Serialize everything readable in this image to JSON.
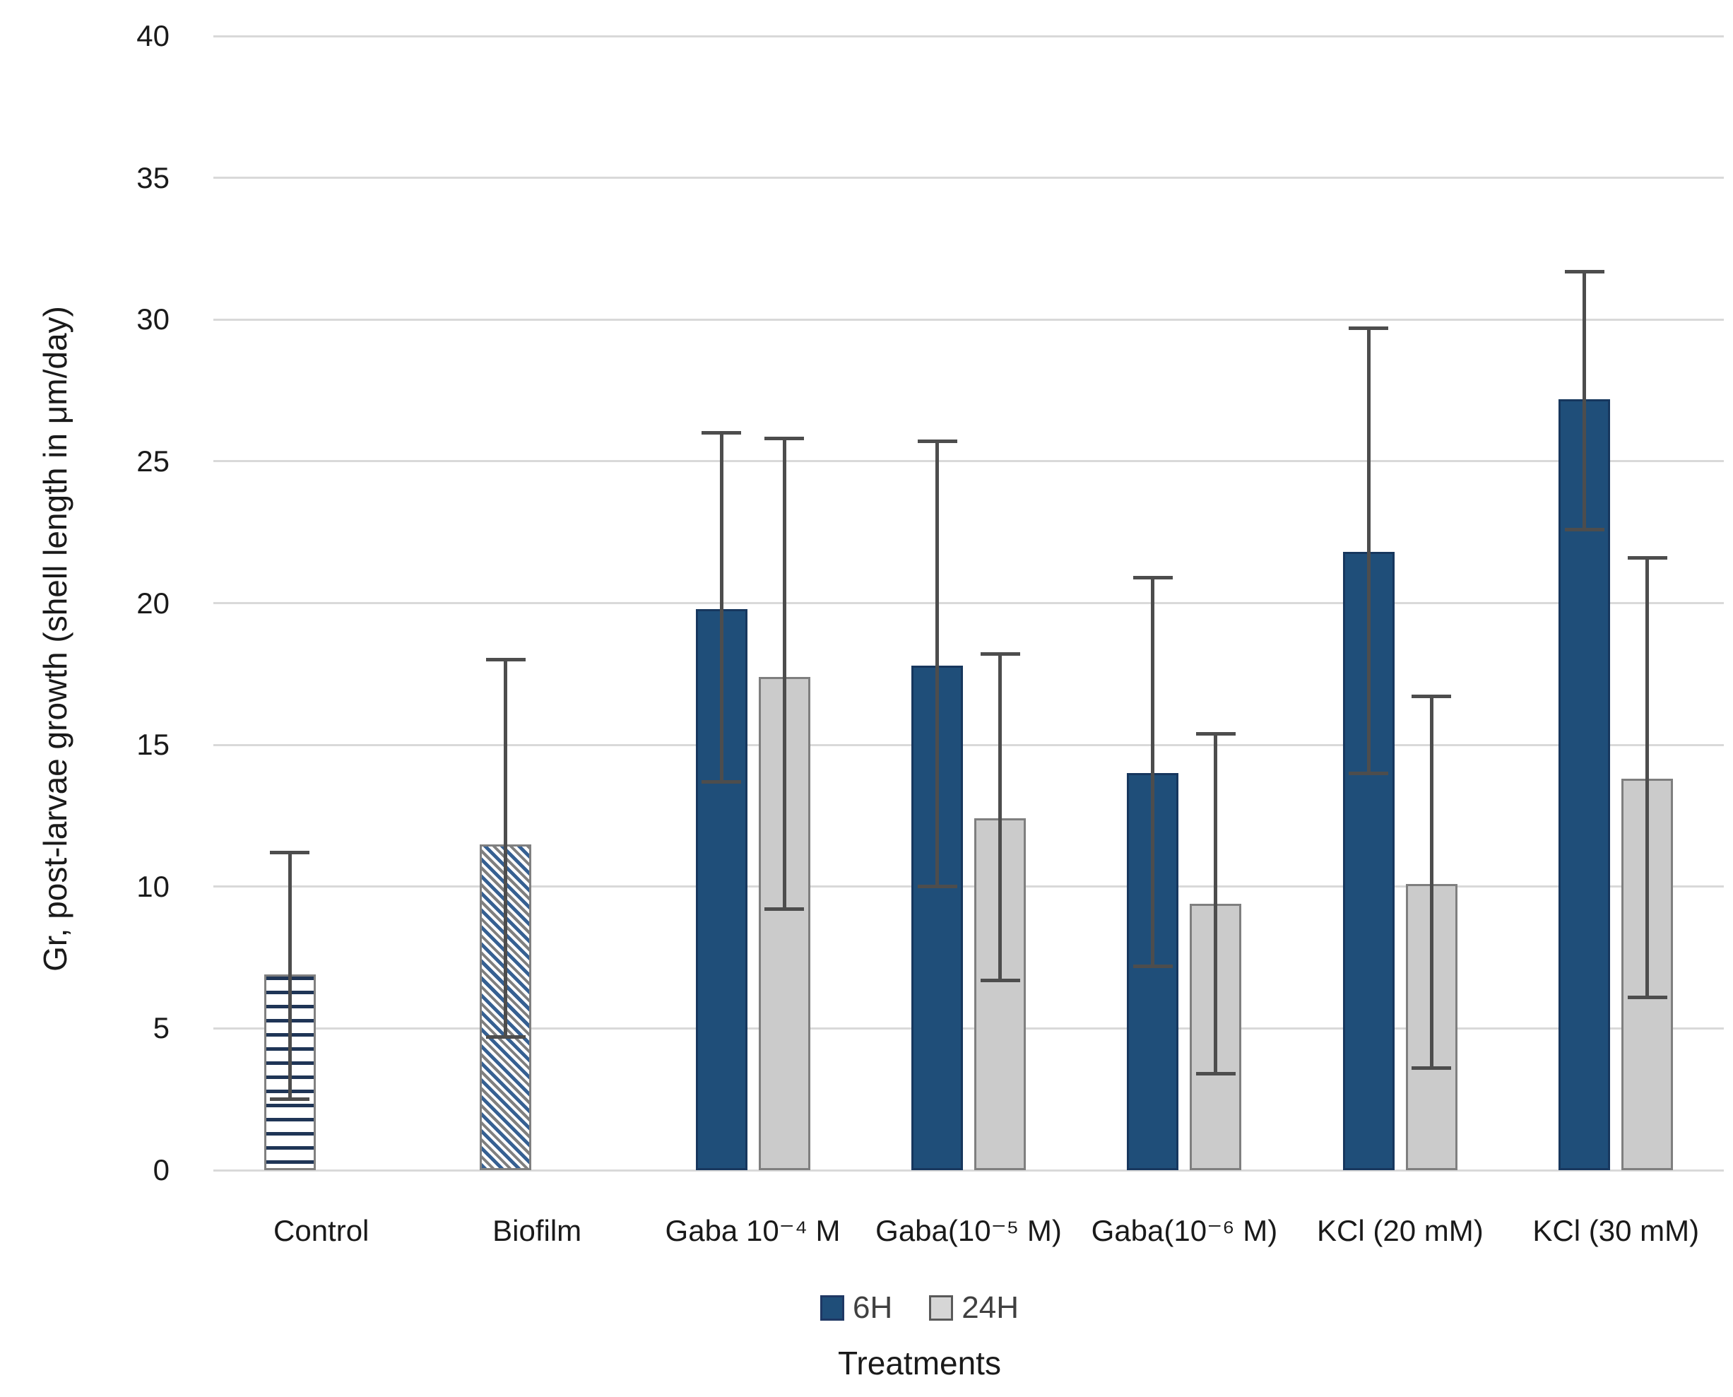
{
  "chart_data": {
    "type": "bar",
    "title": "",
    "xlabel": "Treatments",
    "ylabel": "Gr, post-larvae growth (shell length in μm/day)",
    "ylim": [
      0,
      40
    ],
    "ytick_step": 5,
    "grid": true,
    "legend_position": "bottom",
    "legend": [
      "6H",
      "24H"
    ],
    "categories": [
      "Control",
      "Biofilm",
      "Gaba 10⁻⁴ M",
      "Gaba(10⁻⁵ M)",
      "Gaba(10⁻⁶ M)",
      "KCl (20 mM)",
      "KCl (30 mM)"
    ],
    "series": [
      {
        "name": "6H",
        "style": "solid-blue",
        "values": [
          6.9,
          11.5,
          19.8,
          17.8,
          14.0,
          21.8,
          27.2
        ],
        "err_low": [
          2.5,
          4.7,
          13.7,
          10.0,
          7.2,
          14.0,
          22.6
        ],
        "err_high": [
          11.2,
          18.0,
          26.0,
          25.7,
          20.9,
          29.7,
          31.7
        ]
      },
      {
        "name": "24H",
        "style": "solid-gray",
        "values": [
          null,
          null,
          17.4,
          12.4,
          9.4,
          10.1,
          13.8
        ],
        "err_low": [
          null,
          null,
          9.2,
          6.7,
          3.4,
          3.6,
          6.1
        ],
        "err_high": [
          null,
          null,
          25.8,
          18.2,
          15.4,
          16.7,
          21.6
        ]
      }
    ],
    "single_bar_patterns": {
      "Control": "horizontal-stripes",
      "Biofilm": "diagonal-stripes"
    },
    "colors": {
      "series_6h": "#1F4E79",
      "series_24h": "#CBCBCB",
      "bar_border_gray": "#7F7F7F",
      "pattern_stripe_navy": "#1F3556",
      "pattern_stripe_blue": "#366092",
      "error_bar": "#4D4D4D",
      "gridline": "#D9D9D9",
      "text": "#1a1a1a"
    }
  }
}
